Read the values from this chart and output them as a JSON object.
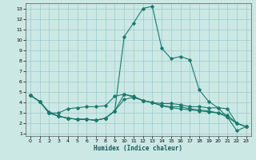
{
  "xlabel": "Humidex (Indice chaleur)",
  "ylabel": "",
  "bg_color": "#cce8e4",
  "grid_color": "#99cccc",
  "line_color": "#1a7a6e",
  "xlim": [
    -0.5,
    23.5
  ],
  "ylim": [
    0.8,
    13.5
  ],
  "xticks": [
    0,
    1,
    2,
    3,
    4,
    5,
    6,
    7,
    8,
    9,
    10,
    11,
    12,
    13,
    14,
    15,
    16,
    17,
    18,
    19,
    20,
    21,
    22,
    23
  ],
  "yticks": [
    1,
    2,
    3,
    4,
    5,
    6,
    7,
    8,
    9,
    10,
    11,
    12,
    13
  ],
  "lines": [
    [
      0,
      4.7,
      1,
      4.1,
      2,
      3.1,
      3,
      2.7,
      4,
      2.5,
      5,
      2.4,
      6,
      2.4,
      7,
      2.3,
      8,
      2.5,
      9,
      3.2,
      10,
      10.3,
      11,
      11.6,
      12,
      13.0,
      13,
      13.2,
      14,
      9.2,
      15,
      8.2,
      16,
      8.4,
      17,
      8.1,
      18,
      5.2,
      19,
      4.1,
      20,
      3.5,
      21,
      2.6,
      22,
      1.3,
      23,
      1.7
    ],
    [
      0,
      4.7,
      1,
      4.1,
      2,
      3.0,
      3,
      3.0,
      4,
      3.4,
      5,
      3.5,
      6,
      3.6,
      7,
      3.6,
      8,
      3.7,
      9,
      4.6,
      10,
      4.8,
      11,
      4.6,
      12,
      4.2,
      13,
      4.0,
      14,
      3.9,
      15,
      3.9,
      16,
      3.8,
      17,
      3.6,
      18,
      3.6,
      19,
      3.5,
      20,
      3.5,
      21,
      3.4,
      22,
      2.0,
      23,
      1.7
    ],
    [
      0,
      4.7,
      1,
      4.1,
      2,
      3.0,
      3,
      2.7,
      4,
      2.5,
      5,
      2.4,
      6,
      2.4,
      7,
      2.3,
      8,
      2.5,
      9,
      3.2,
      10,
      4.8,
      11,
      4.5,
      12,
      4.2,
      13,
      4.0,
      14,
      3.7,
      15,
      3.6,
      16,
      3.6,
      17,
      3.4,
      18,
      3.3,
      19,
      3.2,
      20,
      3.0,
      21,
      2.8,
      22,
      2.0,
      23,
      1.7
    ],
    [
      0,
      4.7,
      1,
      4.1,
      2,
      3.0,
      3,
      2.7,
      4,
      2.5,
      5,
      2.4,
      6,
      2.4,
      7,
      2.3,
      8,
      2.5,
      9,
      3.2,
      10,
      4.3,
      11,
      4.5,
      12,
      4.2,
      13,
      4.0,
      14,
      3.7,
      15,
      3.5,
      16,
      3.4,
      17,
      3.3,
      18,
      3.2,
      19,
      3.1,
      20,
      3.0,
      21,
      2.6,
      22,
      2.0,
      23,
      1.7
    ]
  ]
}
